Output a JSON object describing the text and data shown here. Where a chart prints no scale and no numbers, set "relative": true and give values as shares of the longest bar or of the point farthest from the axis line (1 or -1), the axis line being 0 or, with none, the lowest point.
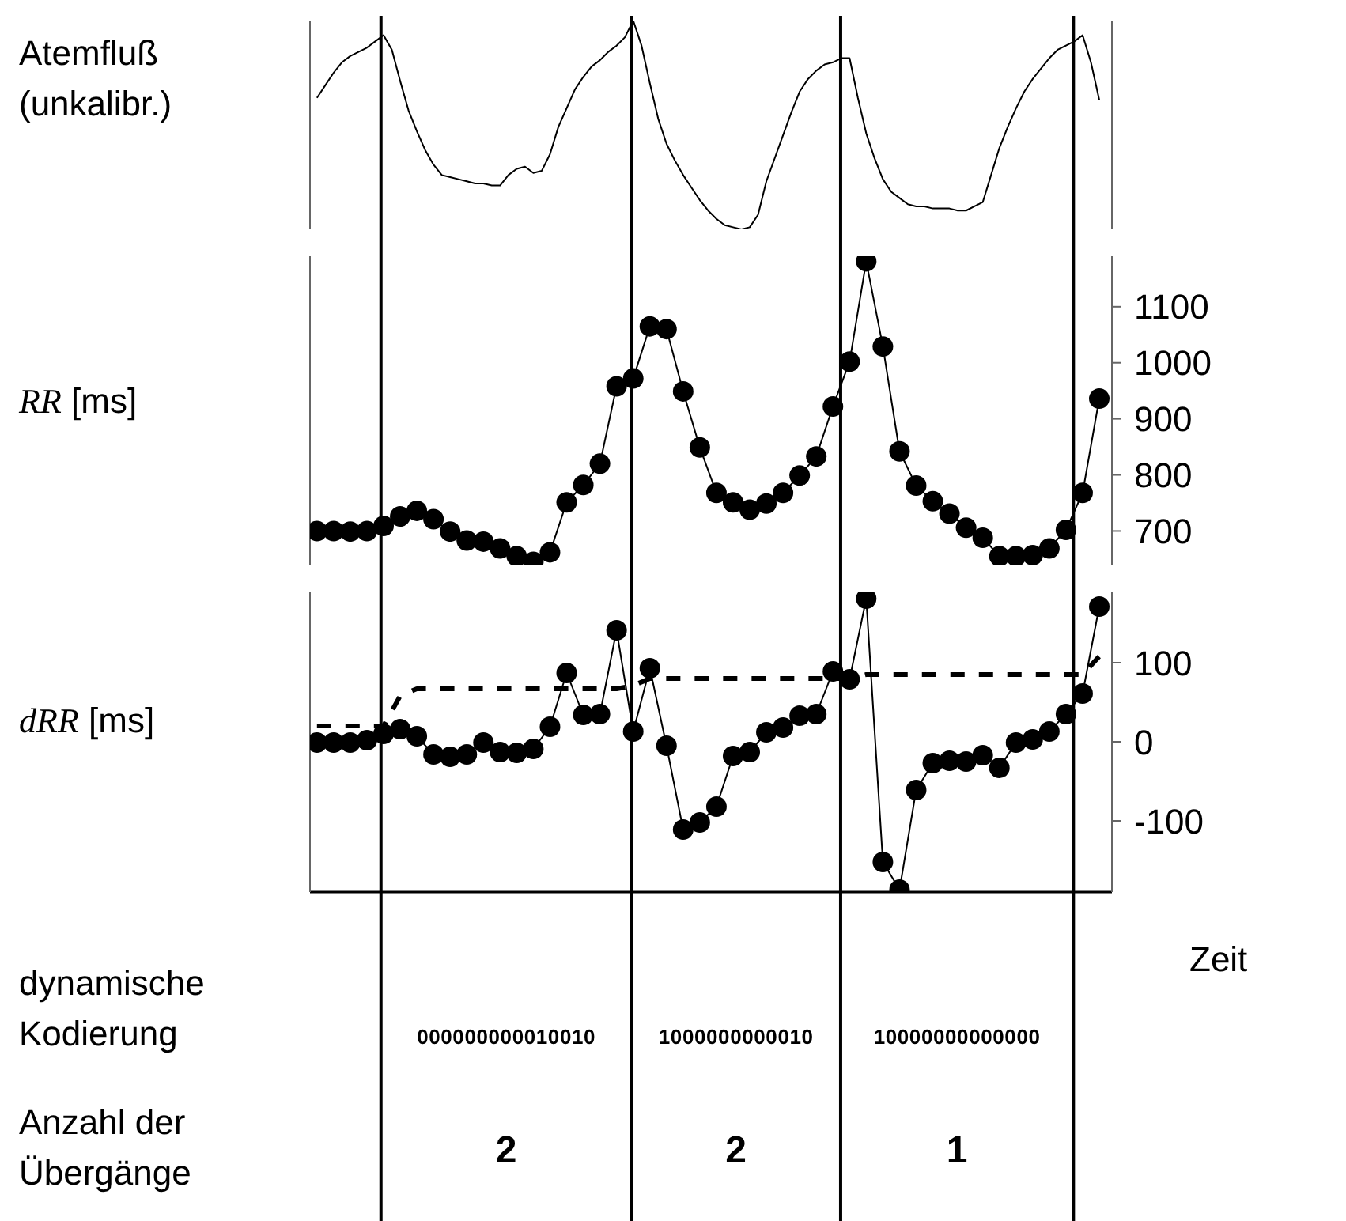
{
  "chart_data": [
    {
      "type": "line",
      "ylabel": "Atemfluß (unkalibr.)",
      "relative": true,
      "color": "#000000",
      "marker": "none",
      "tick_labels": false,
      "categories": [
        null,
        null,
        null,
        null,
        null,
        null,
        null,
        null,
        null,
        null,
        null,
        null,
        null,
        null,
        null,
        null,
        null,
        null,
        null,
        null,
        null,
        null,
        null,
        null,
        null,
        null,
        null,
        null,
        null,
        null,
        null,
        null,
        null,
        null,
        null,
        null,
        null,
        null,
        null,
        null,
        null,
        null,
        null,
        null,
        null,
        null,
        null,
        null,
        null,
        null,
        null,
        null,
        null,
        null,
        null,
        null,
        null,
        null,
        null,
        null,
        null,
        null,
        null,
        null,
        null,
        null,
        null,
        null,
        null,
        null,
        null,
        null,
        null,
        null,
        null,
        null,
        null,
        null,
        null,
        null,
        null,
        null,
        null,
        null,
        null,
        null,
        null,
        null,
        null,
        null,
        null,
        null,
        null,
        null,
        null
      ],
      "values": [
        0.63,
        0.69,
        0.75,
        0.8,
        0.83,
        0.85,
        0.87,
        0.9,
        0.93,
        0.86,
        0.71,
        0.57,
        0.47,
        0.38,
        0.31,
        0.26,
        0.25,
        0.24,
        0.23,
        0.22,
        0.22,
        0.21,
        0.21,
        0.26,
        0.29,
        0.3,
        0.27,
        0.28,
        0.36,
        0.49,
        0.58,
        0.67,
        0.73,
        0.78,
        0.81,
        0.85,
        0.88,
        0.92,
        1,
        0.88,
        0.7,
        0.53,
        0.41,
        0.33,
        0.26,
        0.2,
        0.14,
        0.09,
        0.05,
        0.02,
        0.01,
        0,
        0.01,
        0.07,
        0.23,
        0.34,
        0.45,
        0.56,
        0.66,
        0.72,
        0.76,
        0.79,
        0.8,
        0.82,
        0.82,
        0.63,
        0.46,
        0.34,
        0.24,
        0.18,
        0.15,
        0.12,
        0.11,
        0.11,
        0.1,
        0.1,
        0.1,
        0.09,
        0.09,
        0.11,
        0.13,
        0.26,
        0.39,
        0.49,
        0.58,
        0.66,
        0.72,
        0.77,
        0.82,
        0.86,
        0.88,
        0.9,
        0.93,
        0.8,
        0.62
      ]
    },
    {
      "type": "line",
      "ylabel": "RR [ms]",
      "color": "#000000",
      "marker": "circle",
      "ylim": [
        640,
        1190
      ],
      "yticks": [
        700,
        800,
        900,
        1000,
        1100
      ],
      "tick_labels": "y",
      "categories": [
        null,
        null,
        null,
        null,
        null,
        null,
        null,
        null,
        null,
        null,
        null,
        null,
        null,
        null,
        null,
        null,
        null,
        null,
        null,
        null,
        null,
        null,
        null,
        null,
        null,
        null,
        null,
        null,
        null,
        null,
        null,
        null,
        null,
        null,
        null,
        null,
        null,
        null,
        null,
        null,
        null,
        null,
        null,
        null,
        null,
        null,
        null,
        null
      ],
      "values": [
        700,
        700,
        699,
        700,
        709,
        726,
        736,
        721,
        699,
        683,
        681,
        669,
        655,
        645,
        662,
        751,
        782,
        820,
        958,
        972,
        1065,
        1060,
        949,
        849,
        768,
        751,
        738,
        749,
        768,
        799,
        833,
        922,
        1002,
        1181,
        1029,
        842,
        781,
        753,
        731,
        706,
        688,
        655,
        655,
        657,
        669,
        702,
        768,
        936
      ]
    },
    {
      "type": "line",
      "ylabel": "dRR [ms]",
      "xlabel": "Zeit",
      "marker": "circle",
      "ylim": [
        -190,
        190
      ],
      "yticks": [
        -100,
        0,
        100
      ],
      "tick_labels": "y",
      "categories": [
        null,
        null,
        null,
        null,
        null,
        null,
        null,
        null,
        null,
        null,
        null,
        null,
        null,
        null,
        null,
        null,
        null,
        null,
        null,
        null,
        null,
        null,
        null,
        null,
        null,
        null,
        null,
        null,
        null,
        null,
        null,
        null,
        null,
        null,
        null,
        null,
        null,
        null,
        null,
        null,
        null,
        null,
        null,
        null,
        null,
        null,
        null,
        null
      ],
      "series": [
        {
          "color": "#000000",
          "values": [
            -1,
            -1,
            -1,
            2,
            10,
            16,
            7,
            -16,
            -19,
            -16,
            -1,
            -13,
            -14,
            -9,
            19,
            87,
            34,
            35,
            141,
            13,
            93,
            -5,
            -111,
            -102,
            -82,
            -18,
            -13,
            12,
            18,
            33,
            35,
            89,
            79,
            181,
            -152,
            -187,
            -61,
            -27,
            -24,
            -25,
            -17,
            -33,
            -1,
            3,
            13,
            35,
            61,
            171
          ]
        },
        {
          "type": "line",
          "color": "#000000",
          "line_style": "dashed",
          "marker": "none",
          "values": [
            20,
            20,
            20,
            20,
            20,
            58,
            67,
            67,
            67,
            67,
            67,
            67,
            67,
            67,
            67,
            67,
            67,
            67,
            67,
            71,
            80,
            80,
            80,
            80,
            80,
            80,
            80,
            80,
            80,
            80,
            80,
            80,
            80,
            85,
            85,
            85,
            85,
            85,
            85,
            85,
            85,
            85,
            85,
            85,
            85,
            85,
            85,
            108
          ]
        }
      ],
      "annotations": [
        "dynamische Kodierung",
        "000000000010010",
        "1000000000010",
        "10000000000000",
        "Anzahl der Übergänge",
        "2",
        "2",
        "1"
      ]
    }
  ]
}
